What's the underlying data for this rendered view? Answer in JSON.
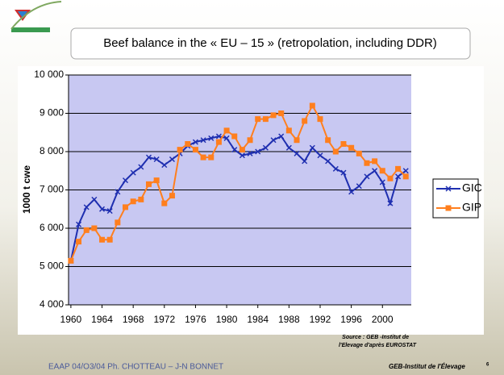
{
  "chart_data": {
    "type": "line",
    "title": "Beef balance in the « EU – 15 » (retropolation, including DDR)",
    "y_label": "1000 t cwe",
    "x": [
      1960,
      1961,
      1962,
      1963,
      1964,
      1965,
      1966,
      1967,
      1968,
      1969,
      1970,
      1971,
      1972,
      1973,
      1974,
      1975,
      1976,
      1977,
      1978,
      1979,
      1980,
      1981,
      1982,
      1983,
      1984,
      1985,
      1986,
      1987,
      1988,
      1989,
      1990,
      1991,
      1992,
      1993,
      1994,
      1995,
      1996,
      1997,
      1998,
      1999,
      2000,
      2001,
      2002,
      2003
    ],
    "series": [
      {
        "name": "GIC",
        "color": "#1f2fb0",
        "marker": "x",
        "values": [
          5150,
          6100,
          6550,
          6750,
          6500,
          6450,
          6950,
          7250,
          7450,
          7600,
          7850,
          7800,
          7650,
          7800,
          7950,
          8150,
          8250,
          8300,
          8350,
          8400,
          8350,
          8050,
          7900,
          7950,
          8000,
          8100,
          8300,
          8400,
          8100,
          7950,
          7750,
          8100,
          7900,
          7750,
          7550,
          7450,
          6950,
          7100,
          7350,
          7500,
          7200,
          6650,
          7350,
          7500
        ]
      },
      {
        "name": "GIP",
        "color": "#ff7f1e",
        "marker": "square",
        "values": [
          5150,
          5650,
          5950,
          6000,
          5700,
          5700,
          6150,
          6550,
          6700,
          6750,
          7150,
          7250,
          6650,
          6850,
          8050,
          8200,
          8050,
          7850,
          7850,
          8250,
          8550,
          8400,
          8050,
          8300,
          8850,
          8850,
          8950,
          9000,
          8550,
          8300,
          8800,
          9200,
          8850,
          8300,
          8000,
          8200,
          8100,
          7950,
          7700,
          7750,
          7500,
          7300,
          7550,
          7350
        ]
      }
    ],
    "xlim": [
      1959.7,
      2003.7
    ],
    "xticks": [
      1960,
      1964,
      1968,
      1972,
      1976,
      1980,
      1984,
      1988,
      1992,
      1996,
      2000
    ],
    "ylim": [
      4000,
      10000
    ],
    "yticks": [
      {
        "value": 4000,
        "label": "4 000"
      },
      {
        "value": 5000,
        "label": "5 000"
      },
      {
        "value": 6000,
        "label": "6 000"
      },
      {
        "value": 7000,
        "label": "7 000"
      },
      {
        "value": 8000,
        "label": "8 000"
      },
      {
        "value": 9000,
        "label": "9 000"
      },
      {
        "value": 10000,
        "label": "10 000"
      }
    ],
    "grid": true,
    "legend": "right"
  },
  "slide": {
    "source": [
      "Source : GEB -Institut de",
      "l'Elevage d'après EUROSTAT"
    ],
    "footer_left": "EAAP  04/O3/04 Ph. CHOTTEAU – J-N BONNET",
    "footer_right": "GEB-Institut de l'Élevage",
    "page_number": "6"
  }
}
